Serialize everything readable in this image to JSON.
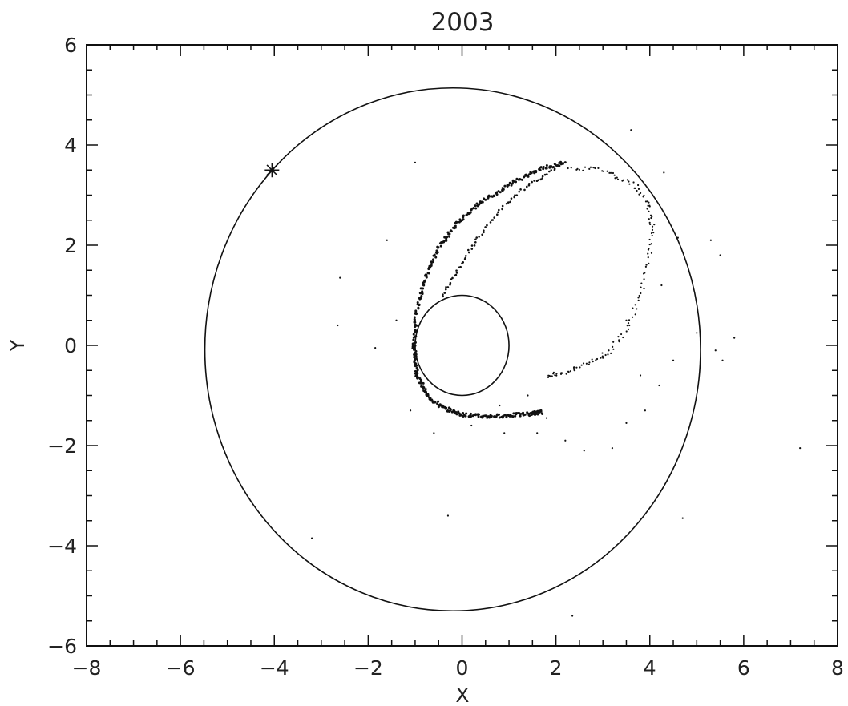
{
  "chart_data": {
    "type": "scatter",
    "title": "2003",
    "xlabel": "X",
    "ylabel": "Y",
    "xlim": [
      -8,
      8
    ],
    "ylim": [
      -6,
      6
    ],
    "x_ticks": [
      -8,
      -6,
      -4,
      -2,
      0,
      2,
      4,
      6,
      8
    ],
    "y_ticks": [
      -6,
      -4,
      -2,
      0,
      2,
      4,
      6
    ],
    "x_tick_labels": [
      "−8",
      "−6",
      "−4",
      "−2",
      "0",
      "2",
      "4",
      "6",
      "8"
    ],
    "y_tick_labels": [
      "−6",
      "−4",
      "−2",
      "0",
      "2",
      "4",
      "6"
    ],
    "grid": false,
    "line_color": "#111111",
    "marker": {
      "x": -4.05,
      "y": 3.5,
      "symbol": "asterisk"
    },
    "circles": [
      {
        "name": "outer orbit",
        "cx": -0.2,
        "cy": -0.08,
        "rx": 5.28,
        "ry": 5.22
      },
      {
        "name": "inner circle",
        "cx": 0.0,
        "cy": 0.0,
        "rx": 1.0,
        "ry": 1.0
      }
    ],
    "stream": {
      "outer_arc": [
        [
          2.2,
          3.65
        ],
        [
          1.6,
          3.5
        ],
        [
          1.0,
          3.2
        ],
        [
          0.4,
          2.85
        ],
        [
          -0.1,
          2.45
        ],
        [
          -0.5,
          1.95
        ],
        [
          -0.8,
          1.3
        ],
        [
          -0.98,
          0.6
        ],
        [
          -1.02,
          -0.1
        ],
        [
          -0.95,
          -0.6
        ],
        [
          -0.75,
          -1.0
        ],
        [
          -0.4,
          -1.25
        ],
        [
          0.0,
          -1.38
        ],
        [
          0.5,
          -1.42
        ],
        [
          1.0,
          -1.4
        ],
        [
          1.5,
          -1.36
        ],
        [
          1.7,
          -1.33
        ]
      ],
      "inner_arc": [
        [
          2.0,
          3.52
        ],
        [
          1.4,
          3.2
        ],
        [
          0.8,
          2.7
        ],
        [
          0.3,
          2.1
        ],
        [
          -0.1,
          1.5
        ],
        [
          -0.45,
          0.95
        ]
      ],
      "right_arc": [
        [
          2.3,
          3.55
        ],
        [
          3.0,
          3.5
        ],
        [
          3.6,
          3.25
        ],
        [
          3.95,
          2.85
        ],
        [
          4.05,
          2.4
        ],
        [
          4.0,
          1.8
        ],
        [
          3.8,
          1.0
        ],
        [
          3.5,
          0.3
        ],
        [
          3.1,
          -0.15
        ],
        [
          2.6,
          -0.4
        ],
        [
          2.1,
          -0.55
        ],
        [
          1.8,
          -0.62
        ]
      ],
      "scattered_points": [
        [
          -1.6,
          2.1
        ],
        [
          -2.6,
          1.35
        ],
        [
          -2.65,
          0.4
        ],
        [
          -1.4,
          0.5
        ],
        [
          -1.85,
          -0.05
        ],
        [
          -1.1,
          -1.3
        ],
        [
          -0.6,
          -1.75
        ],
        [
          0.2,
          -1.6
        ],
        [
          0.9,
          -1.75
        ],
        [
          1.6,
          -1.75
        ],
        [
          1.8,
          -1.45
        ],
        [
          2.2,
          -1.9
        ],
        [
          2.6,
          -2.1
        ],
        [
          3.2,
          -2.05
        ],
        [
          3.5,
          -1.55
        ],
        [
          3.9,
          -1.3
        ],
        [
          3.8,
          -0.6
        ],
        [
          4.2,
          -0.8
        ],
        [
          4.5,
          -0.3
        ],
        [
          5.0,
          0.25
        ],
        [
          5.4,
          -0.1
        ],
        [
          5.55,
          -0.3
        ],
        [
          5.8,
          0.15
        ],
        [
          5.5,
          1.8
        ],
        [
          5.3,
          2.1
        ],
        [
          4.6,
          2.15
        ],
        [
          4.4,
          2.5
        ],
        [
          3.6,
          4.3
        ],
        [
          3.3,
          3.35
        ],
        [
          3.5,
          0.5
        ],
        [
          -0.3,
          -3.4
        ],
        [
          -3.2,
          -3.85
        ],
        [
          4.7,
          -3.45
        ],
        [
          2.35,
          -5.4
        ],
        [
          7.2,
          -2.05
        ],
        [
          -1.0,
          3.65
        ],
        [
          2.8,
          3.55
        ],
        [
          4.3,
          3.45
        ],
        [
          3.75,
          3.2
        ],
        [
          4.25,
          1.2
        ],
        [
          2.4,
          -0.5
        ],
        [
          3.0,
          -0.25
        ],
        [
          1.4,
          -1.0
        ],
        [
          0.8,
          -1.2
        ]
      ]
    }
  }
}
